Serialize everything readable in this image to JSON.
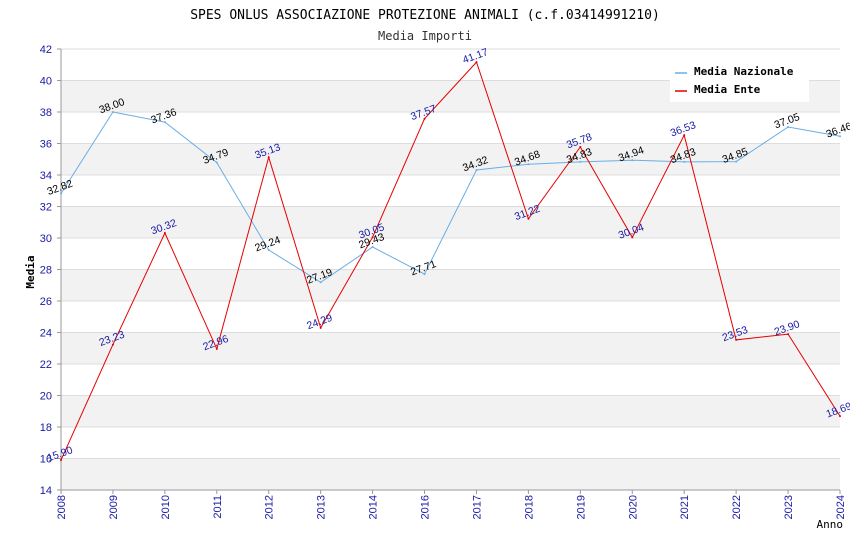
{
  "chart_data": {
    "type": "line",
    "title": "SPES ONLUS ASSOCIAZIONE PROTEZIONE ANIMALI (c.f.03414991210)",
    "subtitle": "Media Importi",
    "xlabel": "Anno",
    "ylabel": "Media",
    "ylim": [
      14,
      42
    ],
    "yticks": [
      "14",
      "16",
      "18",
      "20",
      "22",
      "24",
      "26",
      "28",
      "30",
      "32",
      "34",
      "36",
      "38",
      "40",
      "42"
    ],
    "categories": [
      "2008",
      "2009",
      "2010",
      "2011",
      "2012",
      "2013",
      "2014",
      "2016",
      "2017",
      "2018",
      "2019",
      "2020",
      "2021",
      "2022",
      "2023",
      "2024"
    ],
    "grid": true,
    "legend_position": "top-right",
    "series": [
      {
        "name": "Media Nazionale",
        "color": "#6aaee6",
        "label_color": "#000000",
        "values": [
          32.82,
          38.0,
          37.36,
          34.79,
          29.24,
          27.19,
          29.43,
          27.71,
          34.32,
          34.68,
          34.83,
          34.94,
          34.83,
          34.85,
          37.05,
          36.46
        ],
        "labels": [
          "32.82",
          "38.00",
          "37.36",
          "34.79",
          "29.24",
          "27.19",
          "29.43",
          "27.71",
          "34.32",
          "34.68",
          "34.83",
          "34.94",
          "34.83",
          "34.85",
          "37.05",
          "36.46"
        ]
      },
      {
        "name": "Media Ente",
        "color": "#e60000",
        "label_color": "#1a1aa6",
        "values": [
          15.9,
          23.23,
          30.32,
          22.96,
          35.13,
          24.29,
          30.05,
          37.57,
          41.17,
          31.22,
          35.78,
          30.04,
          36.53,
          23.53,
          23.9,
          18.69
        ],
        "labels": [
          "15.90",
          "23.23",
          "30.32",
          "22.96",
          "35.13",
          "24.29",
          "30.05",
          "37.57",
          "41.17",
          "31.22",
          "35.78",
          "30.04",
          "36.53",
          "23.53",
          "23.90",
          "18.69"
        ]
      }
    ]
  }
}
